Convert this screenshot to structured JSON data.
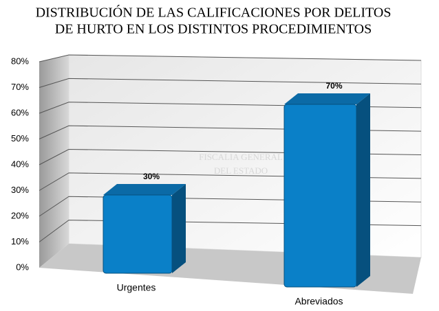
{
  "chart_data": {
    "type": "bar3d",
    "title": [
      "DISTRIBUCIÓN DE LAS CALIFICACIONES POR DELITOS",
      "DE HURTO EN  LOS DISTINTOS PROCEDIMIENTOS"
    ],
    "watermark": [
      "FISCALIA GENERAL",
      "DEL ESTADO"
    ],
    "categories": [
      "Urgentes",
      "Abreviados"
    ],
    "values": [
      30,
      70
    ],
    "value_labels": [
      "30%",
      "70%"
    ],
    "color": "#0a80c8",
    "ylim": [
      0,
      80
    ],
    "yticks": [
      {
        "value": 0,
        "label": "0%"
      },
      {
        "value": 10,
        "label": "10%"
      },
      {
        "value": 20,
        "label": "20%"
      },
      {
        "value": 30,
        "label": "30%"
      },
      {
        "value": 40,
        "label": "40%"
      },
      {
        "value": 50,
        "label": "50%"
      },
      {
        "value": 60,
        "label": "60%"
      },
      {
        "value": 70,
        "label": "70%"
      },
      {
        "value": 80,
        "label": "80%"
      }
    ],
    "grid": true
  }
}
